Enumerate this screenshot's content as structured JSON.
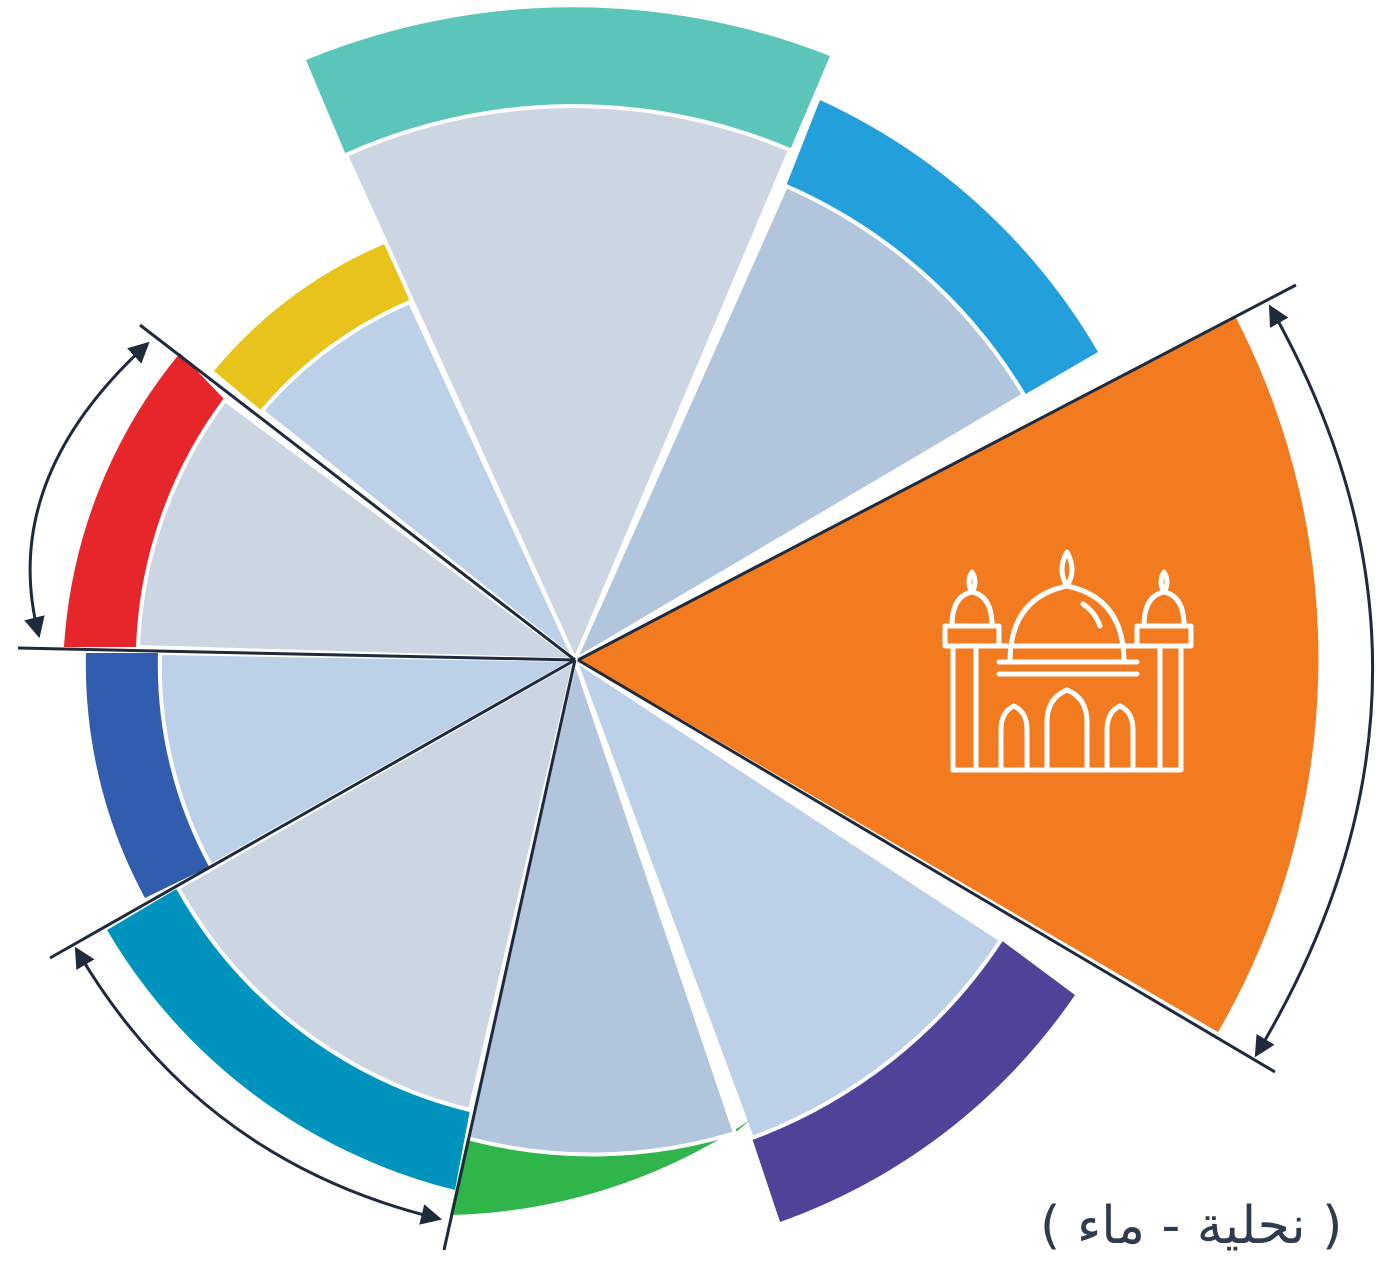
{
  "diagram": {
    "caption": "( نحلية - ماء )",
    "center_icon": "mosque-icon",
    "colors": {
      "ring": [
        "#E8C31B",
        "#5BC5BA",
        "#239FDB",
        "#F27A1F",
        "#4E4399",
        "#2FB54A",
        "#0093BD",
        "#325DAE",
        "#E6262A"
      ],
      "inner": [
        "#BCD0E8",
        "#CCD6E3",
        "#B1C6DD",
        "#F27A1F",
        "#BCD0E8",
        "#B1C6DD",
        "#CCD6E3",
        "#BCD0E8",
        "#CCD6E3"
      ],
      "line": "#1F2B3D",
      "icon": "#FFFFFF"
    },
    "segments": [
      {
        "name": "segment-yellow",
        "ring_color": "#E8C31B"
      },
      {
        "name": "segment-teal",
        "ring_color": "#5BC5BA"
      },
      {
        "name": "segment-blue",
        "ring_color": "#239FDB"
      },
      {
        "name": "segment-orange-highlighted",
        "ring_color": "#F27A1F"
      },
      {
        "name": "segment-purple",
        "ring_color": "#4E4399"
      },
      {
        "name": "segment-green",
        "ring_color": "#2FB54A"
      },
      {
        "name": "segment-cyan",
        "ring_color": "#0093BD"
      },
      {
        "name": "segment-navy",
        "ring_color": "#325DAE"
      },
      {
        "name": "segment-red",
        "ring_color": "#E6262A"
      }
    ]
  }
}
